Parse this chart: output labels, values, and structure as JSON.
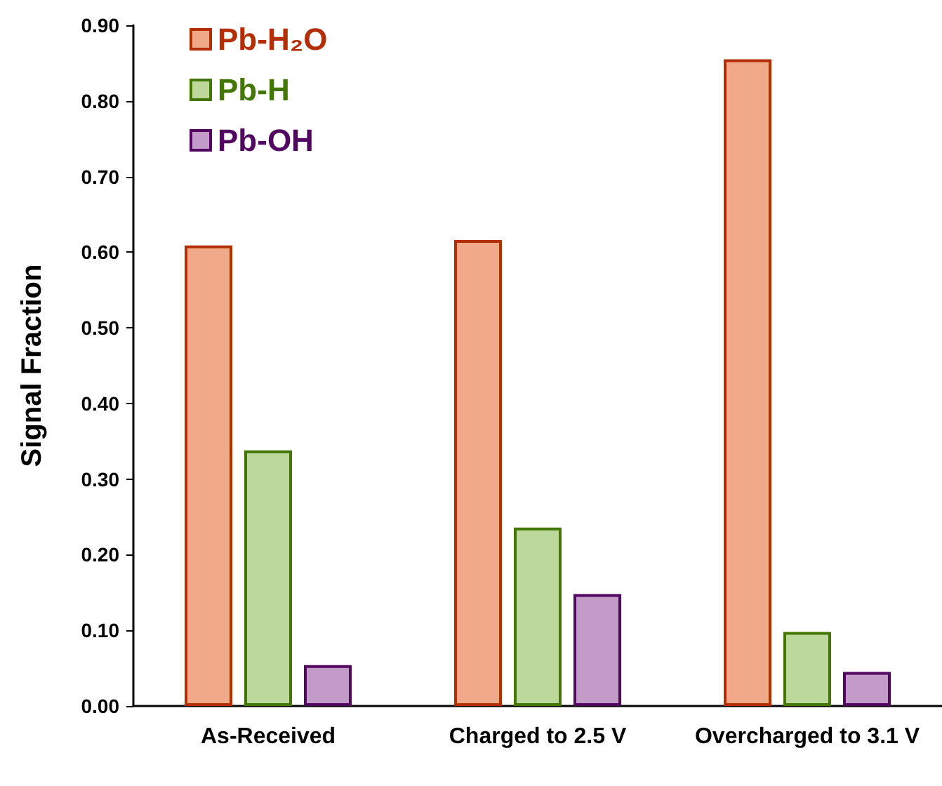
{
  "chart_data": {
    "type": "bar",
    "ylabel": "Signal Fraction",
    "categories": [
      "As-Received",
      "Charged to 2.5 V",
      "Overcharged to 3.1 V"
    ],
    "series": [
      {
        "name": "Pb-H₂O",
        "color": "#f0aa8a",
        "values": [
          0.609,
          0.616,
          0.855
        ]
      },
      {
        "name": "Pb-H",
        "color": "#bdd89b",
        "values": [
          0.338,
          0.236,
          0.098
        ]
      },
      {
        "name": "Pb-OH",
        "color": "#c29bc9",
        "values": [
          0.054,
          0.148,
          0.045
        ]
      }
    ],
    "ylim": [
      0,
      0.9
    ],
    "yticks": [
      {
        "value": 0,
        "label": "0.00"
      },
      {
        "value": 0.1,
        "label": "0.10"
      },
      {
        "value": 0.2,
        "label": "0.20"
      },
      {
        "value": 0.3,
        "label": "0.30"
      },
      {
        "value": 0.4,
        "label": "0.40"
      },
      {
        "value": 0.5,
        "label": "0.50"
      },
      {
        "value": 0.6,
        "label": "0.60"
      },
      {
        "value": 0.7,
        "label": "0.70"
      },
      {
        "value": 0.8,
        "label": "0.80"
      },
      {
        "value": 0.9,
        "label": "0.90"
      }
    ],
    "grid": false,
    "legend": "top left"
  }
}
